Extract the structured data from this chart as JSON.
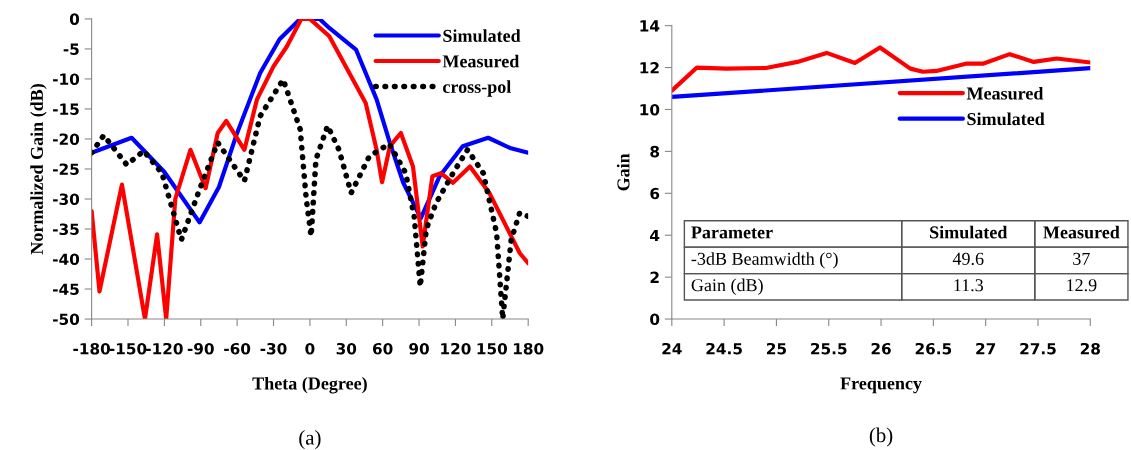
{
  "chart_data": [
    {
      "type": "line",
      "title": "(a)",
      "xlabel": "Theta (Degree)",
      "ylabel": "Normalized Gain (dB)",
      "xlim": [
        -180,
        180
      ],
      "ylim": [
        -50,
        0
      ],
      "xticks": [
        -180,
        -150,
        -120,
        -90,
        -60,
        -30,
        0,
        30,
        60,
        90,
        120,
        150,
        180
      ],
      "yticks": [
        -50,
        -45,
        -40,
        -35,
        -30,
        -25,
        -20,
        -15,
        -10,
        -5,
        0
      ],
      "grid": false,
      "legend": "top right",
      "series": [
        {
          "name": "Simulated",
          "color": "#0000ff",
          "line_style": "solid",
          "x": [
            -180,
            -147,
            -120,
            -91,
            -75,
            -60,
            -41,
            -25,
            -8,
            0,
            8,
            16,
            38,
            55,
            66,
            77,
            91.5,
            107,
            126,
            147,
            165,
            180
          ],
          "values": [
            -22.3,
            -19.8,
            -25.5,
            -33.9,
            -28,
            -19,
            -9,
            -3.4,
            0,
            0,
            0,
            -1.5,
            -5.1,
            -13.4,
            -20.7,
            -27.3,
            -33.2,
            -26.2,
            -21.2,
            -19.8,
            -21.5,
            -22.3
          ]
        },
        {
          "name": "Measured",
          "color": "#ff0000",
          "line_style": "solid",
          "x": [
            -180,
            -173.5,
            -155,
            -136,
            -126,
            -118.5,
            -111,
            -98.5,
            -86,
            -76,
            -69,
            -54,
            -43.6,
            -30,
            -19,
            -7,
            0,
            16,
            32.5,
            46,
            55,
            59.5,
            66,
            75,
            85,
            93,
            101,
            108,
            118,
            132,
            148,
            162,
            173,
            180
          ],
          "values": [
            -32,
            -45.4,
            -27.6,
            -50,
            -35.9,
            -50,
            -30,
            -21.8,
            -28.2,
            -19,
            -17,
            -21.8,
            -13.4,
            -7.9,
            -4.6,
            0,
            0,
            -2.9,
            -9,
            -14,
            -21.8,
            -27.2,
            -21.2,
            -19,
            -24.6,
            -37.9,
            -26.2,
            -25.7,
            -27.3,
            -24.6,
            -29,
            -34.6,
            -39,
            -40.7
          ]
        },
        {
          "name": "cross-pol",
          "color": "#000000",
          "line_style": "dotted",
          "x": [
            -180,
            -170,
            -151,
            -137,
            -122,
            -106,
            -91,
            -76,
            -54,
            -41,
            -22,
            -8,
            -3,
            1,
            5,
            14.6,
            24,
            34,
            49,
            65.5,
            79,
            86,
            91,
            96,
            104,
            118,
            130,
            143,
            154,
            159,
            166,
            173,
            180
          ],
          "values": [
            -22.3,
            -19.4,
            -24.3,
            -22,
            -25.7,
            -36.8,
            -28.4,
            -20.6,
            -27,
            -16.2,
            -10.1,
            -18.4,
            -30,
            -36.2,
            -23.4,
            -17.8,
            -21.8,
            -29,
            -22.9,
            -20.8,
            -25.7,
            -32.9,
            -44.6,
            -35,
            -30.7,
            -25.7,
            -21.8,
            -25.7,
            -35.7,
            -50,
            -36.8,
            -32.3,
            -32.9
          ]
        }
      ]
    },
    {
      "type": "line",
      "title": "(b)",
      "xlabel": "Frequency",
      "ylabel": "Gain",
      "xlim": [
        24,
        28
      ],
      "ylim": [
        0,
        14
      ],
      "xticks": [
        24,
        24.5,
        25,
        25.5,
        26,
        26.5,
        27,
        27.5,
        28
      ],
      "yticks": [
        0,
        2,
        4,
        6,
        8,
        10,
        12,
        14
      ],
      "grid": false,
      "legend": "center right",
      "annotations": [
        "Parameter",
        "Simulated",
        "Measured",
        "-3dB Beamwidth (°)",
        "49.6",
        "37",
        "Gain (dB)",
        "11.3",
        "12.9"
      ],
      "series": [
        {
          "name": "Measured",
          "color": "#ff0000",
          "line_style": "solid",
          "x": [
            24,
            24.24,
            24.52,
            24.9,
            25.2,
            25.48,
            25.75,
            25.99,
            26.28,
            26.4,
            26.53,
            26.82,
            26.98,
            27.23,
            27.46,
            27.68,
            28
          ],
          "values": [
            10.9,
            12.0,
            11.95,
            11.98,
            12.27,
            12.7,
            12.22,
            12.96,
            11.95,
            11.8,
            11.84,
            12.19,
            12.19,
            12.64,
            12.27,
            12.43,
            12.24
          ]
        },
        {
          "name": "Simulated",
          "color": "#0000ff",
          "line_style": "solid",
          "x": [
            24,
            28
          ],
          "values": [
            10.6,
            11.97
          ]
        }
      ]
    }
  ]
}
